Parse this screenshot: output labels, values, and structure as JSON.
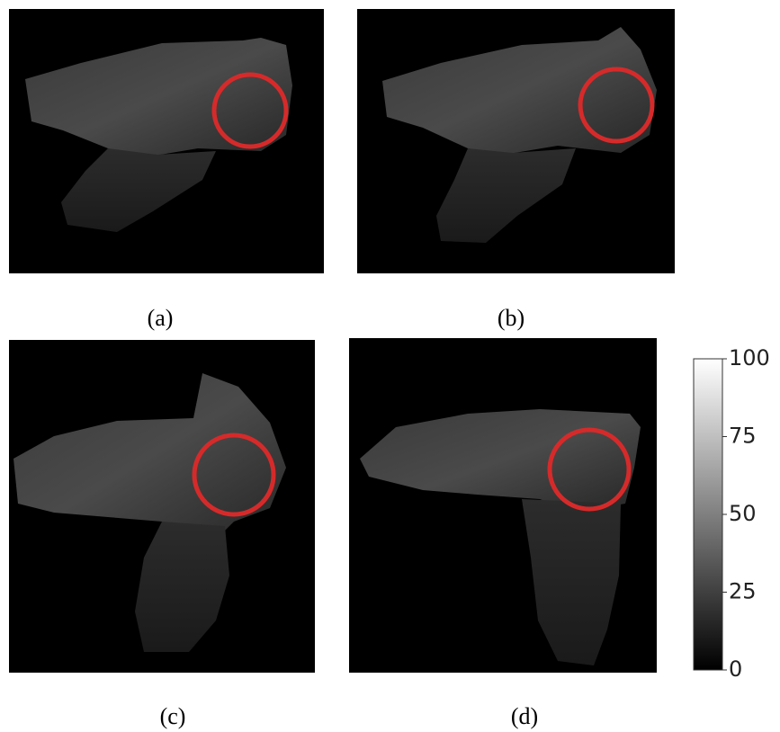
{
  "panels": [
    {
      "label": "(a)"
    },
    {
      "label": "(b)"
    },
    {
      "label": "(c)"
    },
    {
      "label": "(d)"
    }
  ],
  "colorbar": {
    "lim": [
      0,
      100
    ],
    "ticks": [
      0,
      25,
      50,
      75,
      100
    ]
  }
}
